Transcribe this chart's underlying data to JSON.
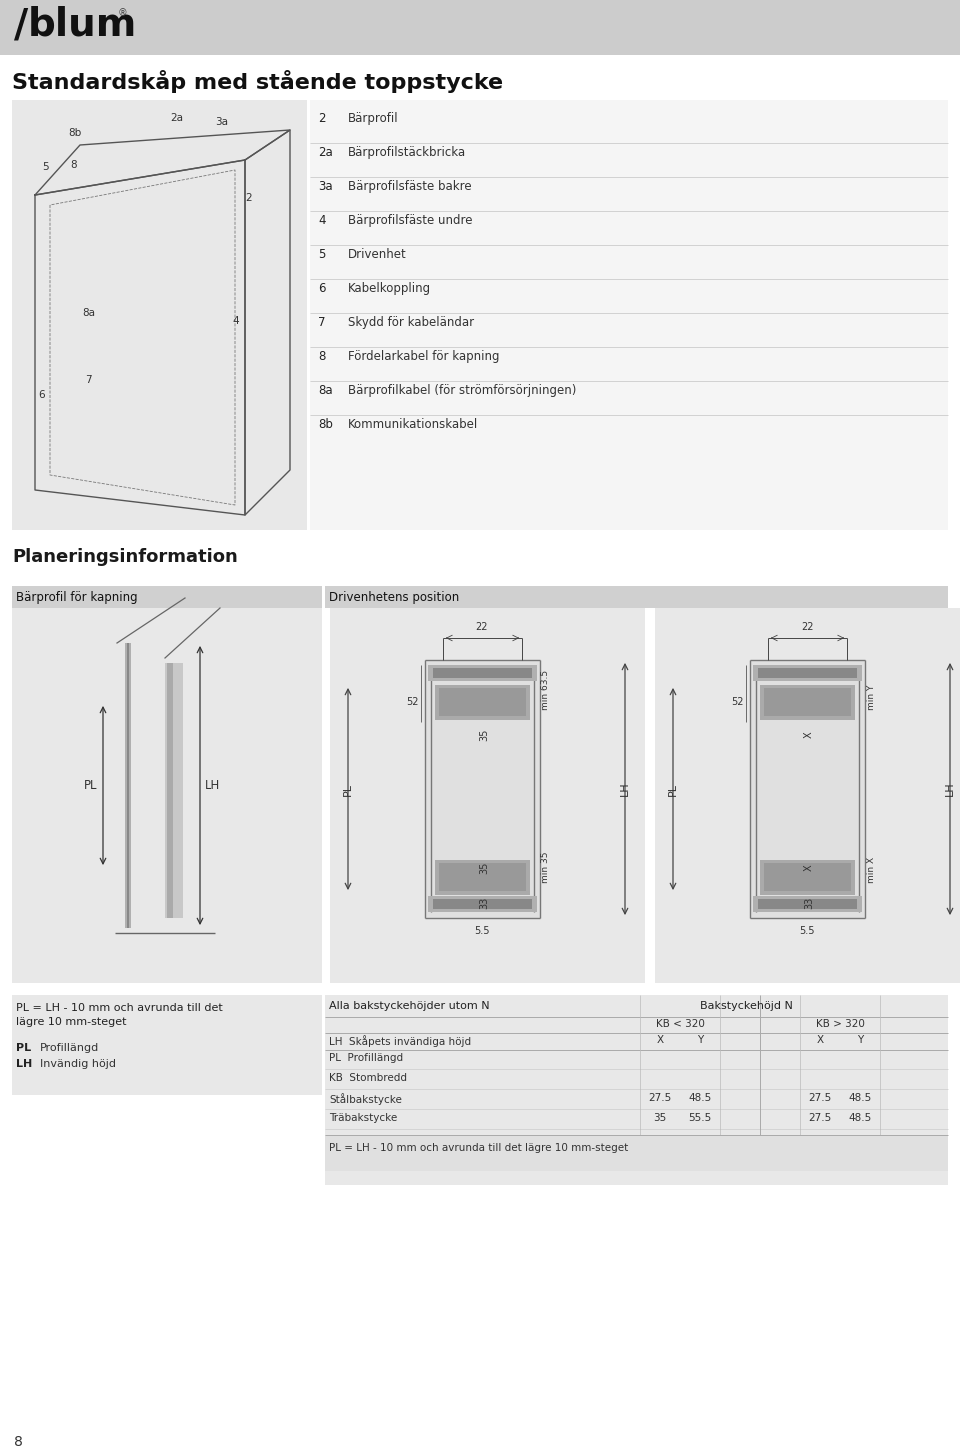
{
  "bg_color": "#f0f0f0",
  "white": "#ffffff",
  "header_bg": "#cccccc",
  "section_header_bg": "#d0d0d0",
  "dark_text": "#1a1a1a",
  "gray_text": "#555555",
  "title": "Standardskåp med stående toppstycke",
  "page_number": "8",
  "planning_header": "Planeringsinformation",
  "left_section_header": "Bärprofil för kapning",
  "right_section_header": "Drivenhetens position",
  "items": [
    [
      "2",
      "Bärprofil"
    ],
    [
      "2a",
      "Bärprofilstäckbricka"
    ],
    [
      "3a",
      "Bärprofilsfäste bakre"
    ],
    [
      "4",
      "Bärprofilsfäste undre"
    ],
    [
      "5",
      "Drivenhet"
    ],
    [
      "6",
      "Kabelkoppling"
    ],
    [
      "7",
      "Skydd för kabeländar"
    ],
    [
      "8",
      "Fördelarkabel för kapning"
    ],
    [
      "8a",
      "Bärprofilkabel (för strömförsörjningen)"
    ],
    [
      "8b",
      "Kommunikationskabel"
    ]
  ],
  "label_left_section": [
    "PL = LH - 10 mm och avrunda till det",
    "lägre 10 mm-steget"
  ],
  "legend_left": [
    [
      "PL",
      "Profillängd"
    ],
    [
      "LH",
      "Invändig höjd"
    ]
  ],
  "right_table_title1": "Alla bakstyckehöjder utom N",
  "right_table_title2": "Bakstyckehöjd N",
  "table_sub_headers": [
    "LH  Skåpets invändiga höjd",
    "X",
    "Y",
    "X",
    "Y"
  ],
  "kb_headers": [
    "KB < 320",
    "KB > 320"
  ],
  "table_rows": [
    [
      "PL  Profillängd",
      "",
      "",
      "",
      ""
    ],
    [
      "KB  Stombredd",
      "",
      "",
      "",
      ""
    ],
    [
      "Stålbakstycke",
      "27.5",
      "48.5",
      "27.5",
      "48.5"
    ],
    [
      "Träbakstycke",
      "35",
      "55.5",
      "27.5",
      "48.5"
    ]
  ],
  "bottom_note": "PL = LH - 10 mm och avrunda till det lägre 10 mm-steget",
  "dims_left": [
    "22",
    "52",
    "35",
    "min 63.5",
    "35",
    "33",
    "min 35",
    "5.5"
  ],
  "dims_right": [
    "22",
    "52",
    "X",
    "min Y",
    "X",
    "33",
    "min X",
    "5.5"
  ]
}
